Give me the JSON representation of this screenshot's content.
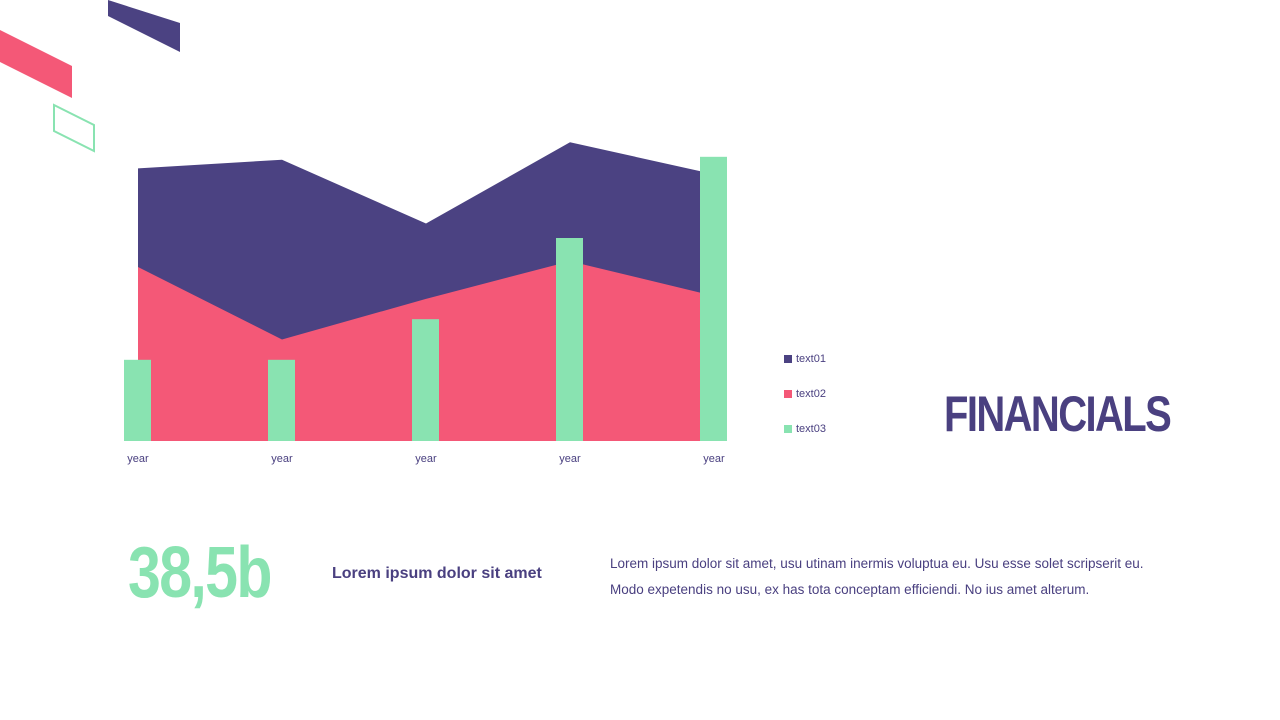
{
  "slide": {
    "title": "FINANCIALS",
    "stat_value": "38,5b",
    "stat_heading": "Lorem ipsum dolor sit amet",
    "description": "Lorem ipsum dolor sit amet, usu utinam inermis voluptua eu. Usu esse solet scripserit eu. Modo expetendis no usu, ex has tota conceptam efficiendi. No ius amet alterum."
  },
  "colors": {
    "purple": "#4b4282",
    "pink": "#f45877",
    "green": "#89e3b1",
    "text": "#4a4080"
  },
  "chart_data": {
    "type": "area",
    "categories": [
      "year",
      "year",
      "year",
      "year",
      "year"
    ],
    "ylim": [
      0,
      100
    ],
    "legend_position": "right",
    "grid": false,
    "series": [
      {
        "name": "text01",
        "type": "area",
        "color": "#4b4282",
        "values": [
          94,
          97,
          75,
          103,
          92
        ]
      },
      {
        "name": "text02",
        "type": "area",
        "color": "#f45877",
        "values": [
          60,
          35,
          49,
          62,
          50
        ]
      },
      {
        "name": "text03",
        "type": "bar",
        "color": "#89e3b1",
        "values": [
          28,
          28,
          42,
          70,
          98
        ]
      }
    ]
  }
}
